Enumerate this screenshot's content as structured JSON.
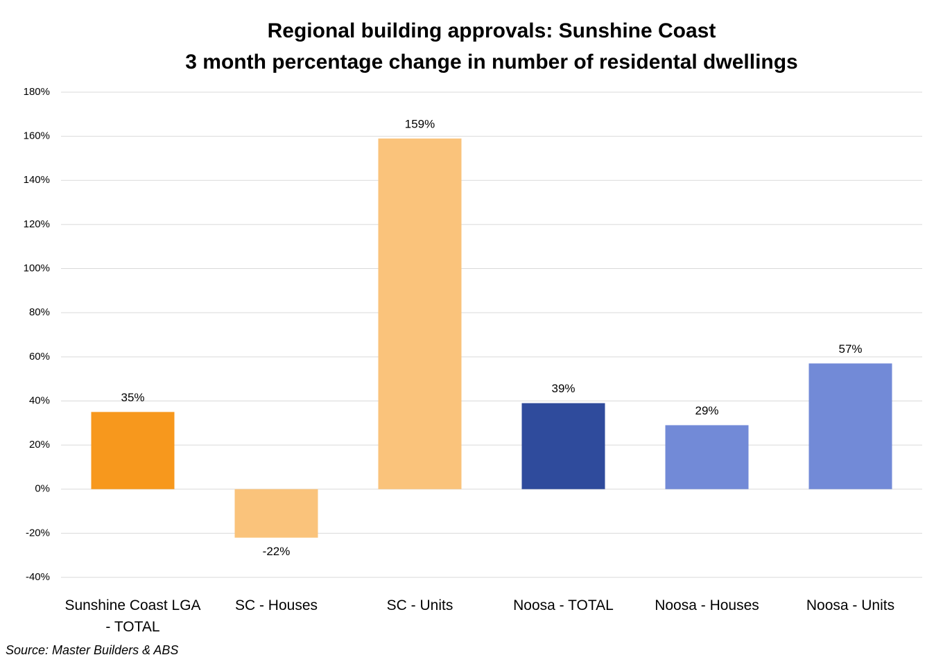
{
  "chart_data": {
    "type": "bar",
    "title": "Regional building approvals: Sunshine Coast",
    "subtitle": "3 month percentage change in number of residental dwellings",
    "categories": [
      "Sunshine Coast LGA - TOTAL",
      "SC - Houses",
      "SC - Units",
      "Noosa - TOTAL",
      "Noosa - Houses",
      "Noosa - Units"
    ],
    "values": [
      35,
      -22,
      159,
      39,
      29,
      57
    ],
    "value_labels": [
      "35%",
      "-22%",
      "159%",
      "39%",
      "29%",
      "57%"
    ],
    "colors": [
      "#f7981d",
      "#fac37b",
      "#fac37b",
      "#2f4b9c",
      "#728ad7",
      "#728ad7"
    ],
    "ylim": [
      -40,
      180
    ],
    "yticks": [
      {
        "value": -40,
        "label": "-40%"
      },
      {
        "value": -20,
        "label": "-20%"
      },
      {
        "value": 0,
        "label": "0%"
      },
      {
        "value": 20,
        "label": "20%"
      },
      {
        "value": 40,
        "label": "40%"
      },
      {
        "value": 60,
        "label": "60%"
      },
      {
        "value": 80,
        "label": "80%"
      },
      {
        "value": 100,
        "label": "100%"
      },
      {
        "value": 120,
        "label": "120%"
      },
      {
        "value": 140,
        "label": "140%"
      },
      {
        "value": 160,
        "label": "160%"
      },
      {
        "value": 180,
        "label": "180%"
      }
    ],
    "grid": true,
    "source": "Source: Master Builders & ABS"
  }
}
